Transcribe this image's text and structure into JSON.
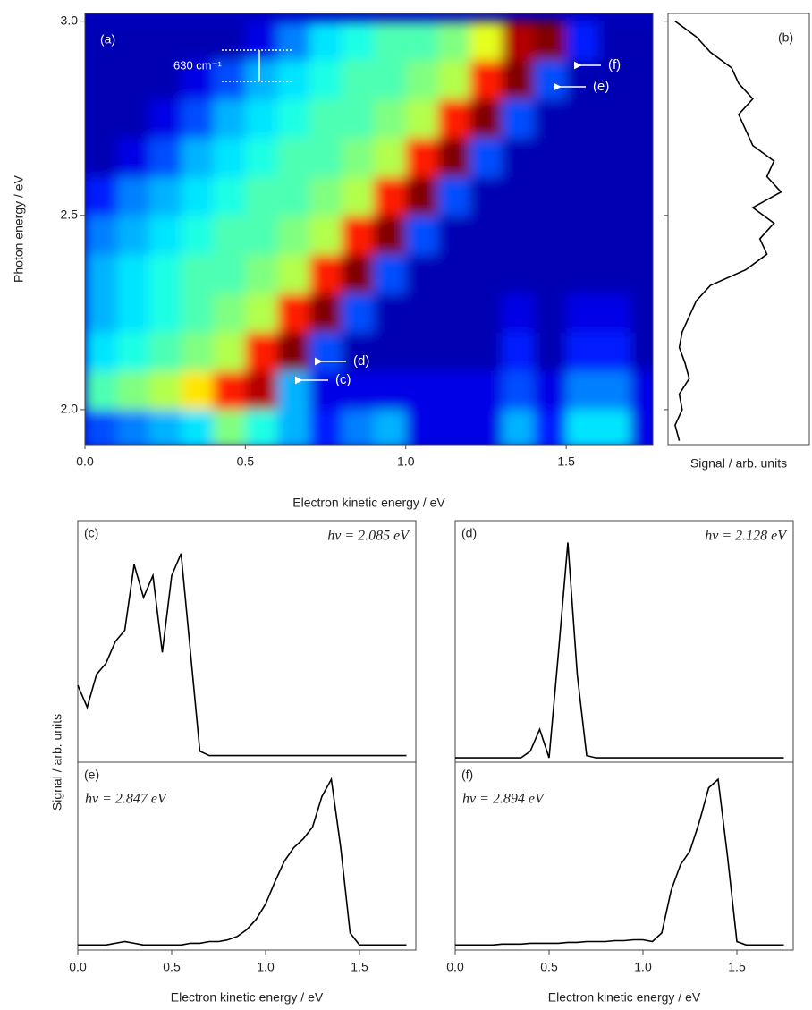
{
  "chart_data": [
    {
      "type": "heatmap",
      "panel_label": "(a)",
      "spacing_label": "630 cm⁻¹",
      "arrow_labels": [
        "(f)",
        "(e)",
        "(d)",
        "(c)"
      ],
      "x_label": "Electron kinetic energy / eV",
      "y_label": "Photon energy / eV",
      "xlim": [
        0,
        1.77
      ],
      "ylim": [
        1.91,
        3.02
      ],
      "xticks": [
        {
          "value": 0,
          "label": "0.0"
        },
        0.5,
        {
          "value": 1,
          "label": "1.0"
        },
        1.5
      ],
      "yticks": [
        {
          "value": 2,
          "label": "2.0"
        },
        2.5,
        {
          "value": 3,
          "label": "3.0"
        }
      ],
      "x": [
        0.05,
        0.15,
        0.25,
        0.35,
        0.45,
        0.55,
        0.65,
        0.75,
        0.85,
        0.95,
        1.05,
        1.15,
        1.25,
        1.35,
        1.45,
        1.55,
        1.65,
        1.75
      ],
      "y": [
        1.95,
        2.05,
        2.15,
        2.25,
        2.35,
        2.45,
        2.55,
        2.65,
        2.75,
        2.85,
        2.95
      ],
      "z": [
        [
          0.2,
          0.25,
          0.3,
          0.35,
          0.5,
          0.4,
          0.3,
          0.15,
          0.25,
          0.3,
          0.1,
          0.1,
          0.1,
          0.3,
          0.15,
          0.35,
          0.35,
          0.1
        ],
        [
          0.45,
          0.5,
          0.55,
          0.65,
          0.85,
          0.95,
          0.3,
          0.1,
          0.1,
          0.1,
          0.1,
          0.1,
          0.1,
          0.2,
          0.1,
          0.25,
          0.25,
          0.1
        ],
        [
          0.35,
          0.4,
          0.45,
          0.5,
          0.55,
          0.85,
          1.0,
          0.2,
          0.05,
          0.05,
          0.05,
          0.05,
          0.05,
          0.15,
          0.05,
          0.15,
          0.15,
          0.05
        ],
        [
          0.3,
          0.35,
          0.4,
          0.45,
          0.5,
          0.55,
          0.85,
          1.0,
          0.2,
          0.05,
          0.05,
          0.05,
          0.05,
          0.1,
          0.05,
          0.1,
          0.1,
          0.05
        ],
        [
          0.3,
          0.35,
          0.4,
          0.45,
          0.45,
          0.5,
          0.55,
          0.85,
          1.0,
          0.2,
          0.05,
          0.05,
          0.05,
          0.05,
          0.05,
          0.05,
          0.05,
          0.05
        ],
        [
          0.25,
          0.3,
          0.35,
          0.4,
          0.45,
          0.45,
          0.5,
          0.55,
          0.85,
          1.0,
          0.2,
          0.05,
          0.05,
          0.05,
          0.05,
          0.05,
          0.05,
          0.05
        ],
        [
          0.15,
          0.25,
          0.3,
          0.35,
          0.4,
          0.45,
          0.45,
          0.5,
          0.55,
          0.85,
          1.0,
          0.2,
          0.05,
          0.05,
          0.05,
          0.05,
          0.05,
          0.05
        ],
        [
          0.05,
          0.1,
          0.2,
          0.3,
          0.35,
          0.4,
          0.45,
          0.45,
          0.5,
          0.55,
          0.85,
          1.0,
          0.2,
          0.05,
          0.05,
          0.05,
          0.05,
          0.05
        ],
        [
          0.05,
          0.05,
          0.1,
          0.2,
          0.3,
          0.35,
          0.4,
          0.45,
          0.45,
          0.5,
          0.55,
          0.85,
          1.0,
          0.2,
          0.05,
          0.05,
          0.05,
          0.05
        ],
        [
          0.05,
          0.05,
          0.05,
          0.1,
          0.2,
          0.3,
          0.35,
          0.4,
          0.45,
          0.45,
          0.5,
          0.55,
          0.85,
          1.0,
          0.2,
          0.05,
          0.05,
          0.05
        ],
        [
          0.05,
          0.05,
          0.05,
          0.05,
          0.05,
          0.1,
          0.25,
          0.35,
          0.4,
          0.45,
          0.45,
          0.5,
          0.6,
          0.95,
          1.0,
          0.15,
          0.05,
          0.05
        ]
      ]
    },
    {
      "type": "line",
      "orientation": "vertical",
      "panel_label": "(b)",
      "x_label": "Signal / arb. units",
      "color": "#000000",
      "xlim": [
        0,
        1
      ],
      "ylim": [
        1.91,
        3.02
      ],
      "x": [
        3.0,
        2.96,
        2.92,
        2.88,
        2.84,
        2.8,
        2.76,
        2.72,
        2.68,
        2.64,
        2.6,
        2.56,
        2.52,
        2.48,
        2.44,
        2.4,
        2.36,
        2.32,
        2.28,
        2.24,
        2.2,
        2.16,
        2.12,
        2.08,
        2.04,
        2.0,
        1.96,
        1.92
      ],
      "values": [
        0.05,
        0.2,
        0.3,
        0.45,
        0.5,
        0.6,
        0.5,
        0.55,
        0.6,
        0.75,
        0.7,
        0.8,
        0.6,
        0.75,
        0.65,
        0.7,
        0.55,
        0.3,
        0.2,
        0.15,
        0.1,
        0.08,
        0.12,
        0.15,
        0.08,
        0.1,
        0.05,
        0.08
      ]
    },
    {
      "type": "line",
      "panel_label": "(c)",
      "annotation": "hν = 2.085 eV",
      "y_label": "Signal / arb. units",
      "color": "#000000",
      "xlim": [
        0,
        1.8
      ],
      "ylim": [
        0,
        1.1
      ],
      "x": [
        0,
        0.05,
        0.1,
        0.15,
        0.2,
        0.25,
        0.3,
        0.35,
        0.4,
        0.45,
        0.5,
        0.55,
        0.6,
        0.65,
        0.7,
        0.75,
        0.8,
        0.85,
        0.9,
        0.95,
        1.0,
        1.05,
        1.1,
        1.15,
        1.2,
        1.25,
        1.3,
        1.35,
        1.4,
        1.45,
        1.5,
        1.55,
        1.6,
        1.65,
        1.7,
        1.75
      ],
      "values": [
        0.35,
        0.25,
        0.4,
        0.45,
        0.55,
        0.6,
        0.9,
        0.75,
        0.85,
        0.5,
        0.85,
        0.95,
        0.5,
        0.05,
        0.03,
        0.03,
        0.03,
        0.03,
        0.03,
        0.03,
        0.03,
        0.03,
        0.03,
        0.03,
        0.03,
        0.03,
        0.03,
        0.03,
        0.03,
        0.03,
        0.03,
        0.03,
        0.03,
        0.03,
        0.03,
        0.03
      ]
    },
    {
      "type": "line",
      "panel_label": "(d)",
      "annotation": "hν = 2.128 eV",
      "color": "#000000",
      "xlim": [
        0,
        1.8
      ],
      "ylim": [
        0,
        1.1
      ],
      "x": [
        0,
        0.05,
        0.1,
        0.15,
        0.2,
        0.25,
        0.3,
        0.35,
        0.4,
        0.45,
        0.5,
        0.55,
        0.6,
        0.65,
        0.7,
        0.75,
        0.8,
        0.85,
        0.9,
        0.95,
        1.0,
        1.05,
        1.1,
        1.15,
        1.2,
        1.25,
        1.3,
        1.35,
        1.4,
        1.45,
        1.5,
        1.55,
        1.6,
        1.65,
        1.7,
        1.75
      ],
      "values": [
        0.02,
        0.02,
        0.02,
        0.02,
        0.02,
        0.02,
        0.02,
        0.02,
        0.05,
        0.15,
        0.02,
        0.5,
        1.0,
        0.4,
        0.03,
        0.02,
        0.02,
        0.02,
        0.02,
        0.02,
        0.02,
        0.02,
        0.02,
        0.02,
        0.02,
        0.02,
        0.02,
        0.02,
        0.02,
        0.02,
        0.02,
        0.02,
        0.02,
        0.02,
        0.02,
        0.02
      ]
    },
    {
      "type": "line",
      "panel_label": "(e)",
      "annotation": "hν = 2.847 eV",
      "x_label": "Electron kinetic energy / eV",
      "color": "#000000",
      "xlim": [
        0,
        1.8
      ],
      "ylim": [
        0,
        1.1
      ],
      "xticks": [
        {
          "value": 0,
          "label": "0.0"
        },
        0.5,
        {
          "value": 1,
          "label": "1.0"
        },
        1.5
      ],
      "x": [
        0,
        0.05,
        0.1,
        0.15,
        0.2,
        0.25,
        0.3,
        0.35,
        0.4,
        0.45,
        0.5,
        0.55,
        0.6,
        0.65,
        0.7,
        0.75,
        0.8,
        0.85,
        0.9,
        0.95,
        1.0,
        1.05,
        1.1,
        1.15,
        1.2,
        1.25,
        1.3,
        1.35,
        1.4,
        1.45,
        1.5,
        1.55,
        1.6,
        1.65,
        1.7,
        1.75
      ],
      "values": [
        0.03,
        0.03,
        0.03,
        0.03,
        0.04,
        0.05,
        0.04,
        0.03,
        0.03,
        0.03,
        0.03,
        0.03,
        0.04,
        0.04,
        0.05,
        0.05,
        0.06,
        0.08,
        0.12,
        0.18,
        0.27,
        0.4,
        0.52,
        0.6,
        0.65,
        0.72,
        0.9,
        1.0,
        0.6,
        0.1,
        0.03,
        0.03,
        0.03,
        0.03,
        0.03,
        0.03
      ]
    },
    {
      "type": "line",
      "panel_label": "(f)",
      "annotation": "hν = 2.894 eV",
      "x_label": "Electron kinetic energy / eV",
      "color": "#000000",
      "xlim": [
        0,
        1.8
      ],
      "ylim": [
        0,
        1.1
      ],
      "xticks": [
        {
          "value": 0,
          "label": "0.0"
        },
        0.5,
        {
          "value": 1,
          "label": "1.0"
        },
        1.5
      ],
      "x": [
        0,
        0.05,
        0.1,
        0.15,
        0.2,
        0.25,
        0.3,
        0.35,
        0.4,
        0.45,
        0.5,
        0.55,
        0.6,
        0.65,
        0.7,
        0.75,
        0.8,
        0.85,
        0.9,
        0.95,
        1.0,
        1.05,
        1.1,
        1.15,
        1.2,
        1.25,
        1.3,
        1.35,
        1.4,
        1.45,
        1.5,
        1.55,
        1.6,
        1.65,
        1.7,
        1.75
      ],
      "values": [
        0.03,
        0.03,
        0.03,
        0.03,
        0.03,
        0.035,
        0.035,
        0.035,
        0.04,
        0.04,
        0.04,
        0.04,
        0.045,
        0.045,
        0.05,
        0.05,
        0.05,
        0.055,
        0.055,
        0.06,
        0.06,
        0.05,
        0.1,
        0.35,
        0.5,
        0.58,
        0.75,
        0.95,
        1.0,
        0.55,
        0.05,
        0.03,
        0.03,
        0.03,
        0.03,
        0.03
      ]
    }
  ]
}
